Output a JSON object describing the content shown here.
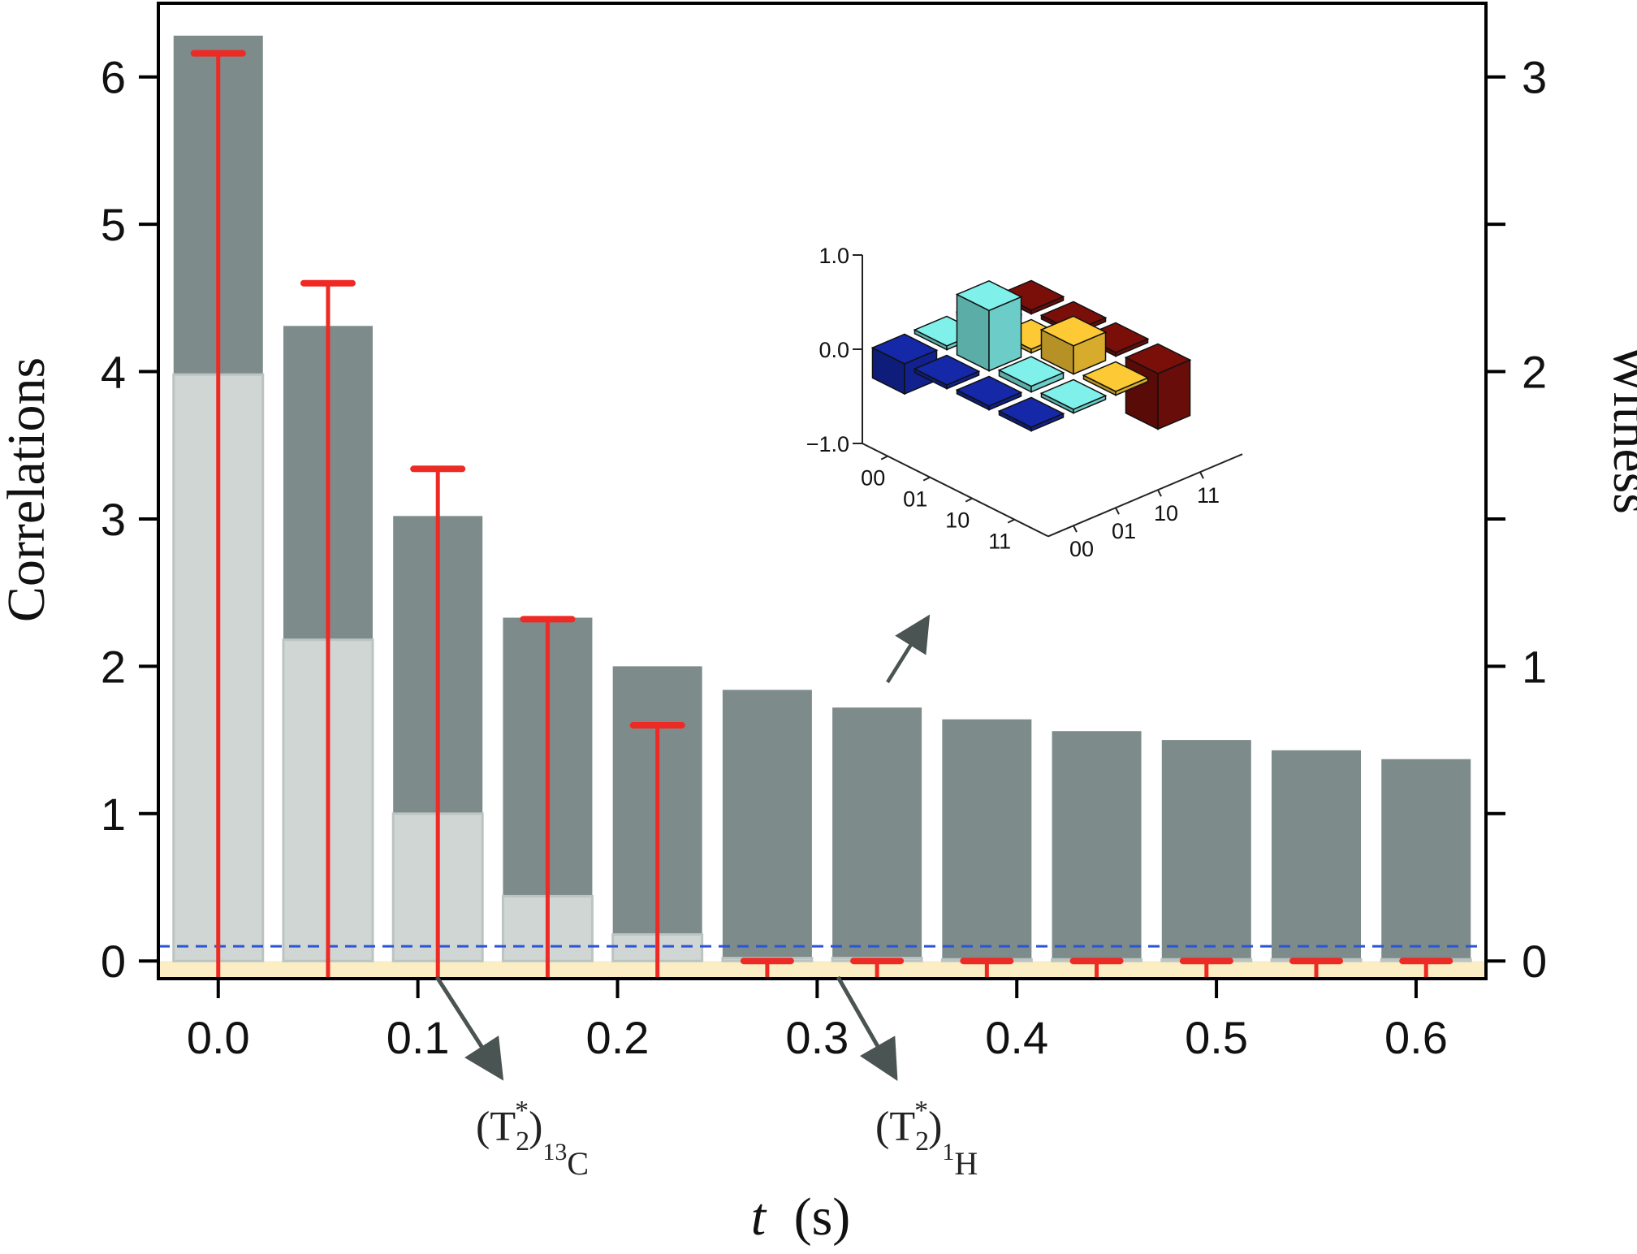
{
  "chart_data": {
    "type": "bar",
    "x": [
      0.0,
      0.055,
      0.11,
      0.165,
      0.22,
      0.275,
      0.33,
      0.385,
      0.44,
      0.495,
      0.55,
      0.605
    ],
    "series": [
      {
        "values": [
          6.28,
          4.31,
          3.02,
          2.33,
          2.0,
          1.84,
          1.72,
          1.64,
          1.56,
          1.5,
          1.43,
          1.37
        ]
      },
      {
        "values": [
          3.98,
          2.18,
          1.0,
          0.44,
          0.18,
          0.02,
          0.02,
          0.0,
          0.0,
          0.0,
          0.0,
          0.0
        ]
      },
      {
        "values": [
          3.08,
          2.3,
          1.67,
          1.16,
          0.8,
          0.0,
          0.0,
          0.0,
          0.0,
          0.0,
          0.0,
          0.0
        ]
      }
    ],
    "xlabel_italic": "t",
    "xlabel_unit": "(s)",
    "ylabel": "Correlations",
    "y2label": "Witness",
    "xticks": [
      "0.0",
      "0.1",
      "0.2",
      "0.3",
      "0.4",
      "0.5",
      "0.6"
    ],
    "yticks": [
      "0",
      "1",
      "2",
      "3",
      "4",
      "5",
      "6"
    ],
    "y2ticks": [
      "0",
      "1",
      "2",
      "3"
    ],
    "ylim": [
      -0.12,
      6.5
    ],
    "y2lim": [
      -0.06,
      3.25
    ],
    "xlim": [
      -0.03,
      0.635
    ],
    "threshold_witness": 0.05,
    "annotations": [
      {
        "base": "(T",
        "sub": "2",
        "sup": "*",
        "tail_sub_sup": "13",
        "tail_sub": "C",
        "close": ")"
      },
      {
        "base": "(T",
        "sub": "2",
        "sup": "*",
        "tail_sub_sup": "1",
        "tail_sub": "H",
        "close": ")"
      }
    ],
    "inset": {
      "type": "3d-bar",
      "zticks": [
        "1.0",
        "0.0",
        "−1.0"
      ],
      "rows": [
        "00",
        "01",
        "10",
        "11"
      ],
      "cols": [
        "00",
        "01",
        "10",
        "11"
      ]
    }
  },
  "colors": {
    "dark_bar": "#7d8b8a",
    "light_bar": "#cfd6d4",
    "witness": "#ee2a24",
    "threshold": "#2a55d6",
    "negative_band": "#fbeec4",
    "arrow": "#4a5453",
    "navy": "#1428a8",
    "cyan": "#7ff0ea",
    "yellow": "#fdc934",
    "maroon": "#7a0f0a"
  }
}
